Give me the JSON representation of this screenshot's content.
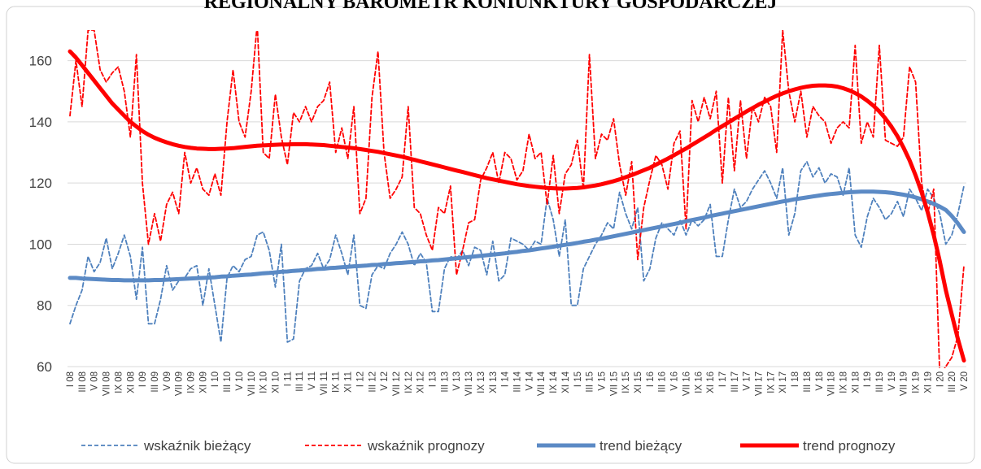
{
  "chart_data": {
    "type": "line",
    "title": "REGIONALNY BAROMETR KONIUNKTURY GOSPODARCZEJ",
    "categories": [
      "I 08",
      null,
      "III 08",
      null,
      "V 08",
      null,
      "VII 08",
      null,
      "IX 08",
      null,
      "XI 08",
      null,
      "I 09",
      null,
      "III 09",
      null,
      "V 09",
      null,
      "VII 09",
      null,
      "IX 09",
      null,
      "XI 09",
      null,
      "I 10",
      null,
      "III 10",
      null,
      "V 10",
      null,
      "VII 10",
      null,
      "IX 10",
      null,
      "XI 10",
      null,
      "I 11",
      null,
      "III 11",
      null,
      "V 11",
      null,
      "VII 11",
      null,
      "IX 11",
      null,
      "XI 11",
      null,
      "I 12",
      null,
      "III 12",
      null,
      "V 12",
      null,
      "VII 12",
      null,
      "IX 12",
      null,
      "XI 12",
      null,
      "I 13",
      null,
      "III 13",
      null,
      "V 13",
      null,
      "VII 13",
      null,
      "IX 13",
      null,
      "XI 13",
      null,
      "I 14",
      null,
      "III 14",
      null,
      "V 14",
      null,
      "VII 14",
      null,
      "IX 14",
      null,
      "XI 14",
      null,
      "I 15",
      null,
      "III 15",
      null,
      "V 15",
      null,
      "VII 15",
      null,
      "IX 15",
      null,
      "XI 15",
      null,
      "I 16",
      null,
      "III 16",
      null,
      "V 16",
      null,
      "VII 16",
      null,
      "IX 16",
      null,
      "XI 16",
      null,
      "I 17",
      null,
      "III 17",
      null,
      "V 17",
      null,
      "VII 17",
      null,
      "IX 17",
      null,
      "XI 17",
      null,
      "I 18",
      null,
      "III 18",
      null,
      "V 18",
      null,
      "VII 18",
      null,
      "IX 18",
      null,
      "XI 18",
      null,
      "I 19",
      null,
      "III 19",
      null,
      "V 19",
      null,
      "VII 19",
      null,
      "IX 19",
      null,
      "XI 19",
      null,
      "I 20",
      null,
      "III 20",
      null,
      "V 20"
    ],
    "series": [
      {
        "name": "wskaźnik bieżący",
        "color": "#4f81bd",
        "dashed": true,
        "values": [
          74,
          80,
          85,
          96,
          91,
          94,
          102,
          92,
          97,
          103,
          96,
          82,
          99,
          74,
          74,
          82,
          93,
          85,
          88,
          89,
          92,
          93,
          80,
          92,
          80,
          68,
          89,
          93,
          91,
          95,
          96,
          103,
          104,
          98,
          86,
          100,
          68,
          69,
          88,
          92,
          93,
          97,
          92,
          95,
          103,
          97,
          90,
          103,
          80,
          79,
          90,
          93,
          92,
          97,
          100,
          104,
          100,
          93,
          97,
          94,
          78,
          78,
          92,
          96,
          95,
          98,
          93,
          99,
          98,
          90,
          101,
          88,
          90,
          102,
          101,
          100,
          98,
          101,
          100,
          115,
          108,
          96,
          108,
          80,
          80,
          92,
          96,
          100,
          103,
          107,
          105,
          117,
          110,
          105,
          112,
          88,
          92,
          102,
          107,
          105,
          103,
          108,
          103,
          108,
          106,
          108,
          113,
          96,
          96,
          108,
          118,
          112,
          114,
          118,
          121,
          124,
          120,
          115,
          125,
          103,
          110,
          124,
          127,
          122,
          125,
          120,
          123,
          122,
          116,
          125,
          103,
          99,
          109,
          115,
          112,
          108,
          110,
          114,
          109,
          118,
          115,
          111,
          118,
          115,
          110,
          100,
          103,
          110,
          119
        ]
      },
      {
        "name": "wskaźnik prognozy",
        "color": "#ff0000",
        "dashed": true,
        "values": [
          142,
          160,
          145,
          170,
          170,
          157,
          153,
          156,
          158,
          150,
          135,
          162,
          120,
          100,
          110,
          101,
          113,
          117,
          110,
          130,
          120,
          125,
          118,
          116,
          123,
          116,
          140,
          157,
          140,
          135,
          150,
          172,
          130,
          128,
          149,
          135,
          126,
          143,
          140,
          145,
          140,
          145,
          147,
          153,
          130,
          138,
          128,
          145,
          110,
          115,
          148,
          163,
          130,
          115,
          118,
          122,
          145,
          112,
          110,
          103,
          98,
          112,
          110,
          119,
          90,
          98,
          107,
          108,
          121,
          125,
          130,
          120,
          130,
          128,
          121,
          124,
          136,
          128,
          130,
          113,
          129,
          110,
          123,
          126,
          134,
          118,
          162,
          128,
          136,
          134,
          141,
          126,
          116,
          127,
          95,
          112,
          121,
          129,
          126,
          118,
          133,
          137,
          105,
          147,
          140,
          148,
          141,
          150,
          120,
          148,
          124,
          147,
          128,
          145,
          140,
          148,
          145,
          130,
          170,
          150,
          140,
          150,
          135,
          145,
          142,
          140,
          133,
          138,
          140,
          138,
          165,
          133,
          140,
          135,
          165,
          134,
          133,
          132,
          135,
          158,
          153,
          120,
          110,
          118,
          57,
          60,
          63,
          70,
          93
        ]
      },
      {
        "name": "trend bieżący",
        "color": "#5b8ac5",
        "dashed": false,
        "values": [
          89,
          89,
          88.8,
          88.7,
          88.6,
          88.5,
          88.4,
          88.3,
          88.3,
          88.2,
          88.2,
          88.2,
          88.2,
          88.2,
          88.3,
          88.3,
          88.4,
          88.5,
          88.6,
          88.7,
          88.8,
          88.9,
          89,
          89.1,
          89.2,
          89.4,
          89.5,
          89.7,
          89.8,
          90,
          90.1,
          90.3,
          90.5,
          90.6,
          90.8,
          91,
          91.1,
          91.3,
          91.4,
          91.6,
          91.7,
          91.9,
          92,
          92.2,
          92.3,
          92.5,
          92.6,
          92.8,
          92.9,
          93,
          93.2,
          93.3,
          93.5,
          93.6,
          93.8,
          93.9,
          94.1,
          94.2,
          94.4,
          94.5,
          94.7,
          94.8,
          95,
          95.2,
          95.4,
          95.6,
          95.8,
          96,
          96.2,
          96.4,
          96.6,
          96.8,
          97,
          97.3,
          97.5,
          97.8,
          98,
          98.3,
          98.6,
          98.9,
          99.2,
          99.5,
          99.8,
          100.1,
          100.4,
          100.8,
          101.1,
          101.5,
          101.8,
          102.2,
          102.6,
          103,
          103.4,
          103.8,
          104.2,
          104.6,
          105,
          105.4,
          105.8,
          106.2,
          106.6,
          107,
          107.5,
          107.9,
          108.3,
          108.7,
          109.2,
          109.6,
          110,
          110.4,
          110.8,
          111.2,
          111.6,
          112,
          112.4,
          112.8,
          113.2,
          113.6,
          114,
          114.3,
          114.7,
          115,
          115.3,
          115.6,
          115.9,
          116.2,
          116.4,
          116.6,
          116.8,
          117,
          117.1,
          117.2,
          117.2,
          117.2,
          117.1,
          117,
          116.8,
          116.5,
          116.2,
          115.8,
          115.3,
          114.7,
          114,
          113.2,
          112.3,
          111.2,
          109.2,
          106.8,
          104
        ]
      },
      {
        "name": "trend prognozy",
        "color": "#ff0000",
        "dashed": false,
        "values": [
          163,
          161,
          158.5,
          156,
          153.5,
          151,
          148.5,
          146,
          144,
          142,
          140,
          138.5,
          137,
          135.8,
          134.8,
          134,
          133.3,
          132.7,
          132.2,
          131.8,
          131.5,
          131.3,
          131.2,
          131.1,
          131.1,
          131.2,
          131.3,
          131.4,
          131.6,
          131.8,
          132,
          132.2,
          132.3,
          132.4,
          132.5,
          132.6,
          132.6,
          132.7,
          132.7,
          132.7,
          132.6,
          132.5,
          132.4,
          132.2,
          132,
          131.8,
          131.6,
          131.4,
          131.1,
          130.8,
          130.5,
          130.2,
          129.8,
          129.4,
          129,
          128.6,
          128.1,
          127.6,
          127.1,
          126.6,
          126.1,
          125.6,
          125.1,
          124.6,
          124.1,
          123.6,
          123.1,
          122.6,
          122.1,
          121.6,
          121.2,
          120.8,
          120.4,
          120,
          119.6,
          119.3,
          119,
          118.8,
          118.6,
          118.4,
          118.3,
          118.2,
          118.2,
          118.3,
          118.4,
          118.6,
          118.9,
          119.2,
          119.6,
          120.1,
          120.6,
          121.2,
          121.9,
          122.6,
          123.4,
          124.2,
          125,
          126,
          127,
          128,
          129.1,
          130.2,
          131.3,
          132.5,
          133.7,
          134.9,
          136.1,
          137.4,
          138.6,
          139.8,
          141,
          142.2,
          143.4,
          144.5,
          145.6,
          146.6,
          147.6,
          148.5,
          149.3,
          150,
          150.6,
          151.1,
          151.5,
          151.8,
          151.9,
          151.9,
          151.8,
          151.5,
          151,
          150.3,
          149.4,
          148.3,
          146.9,
          145.3,
          143.4,
          141.1,
          138.4,
          135.3,
          131.6,
          127.4,
          122.5,
          117,
          110.5,
          103,
          94.5,
          85,
          77,
          69,
          62
        ]
      }
    ],
    "ylim": [
      60,
      170
    ],
    "yticks": [
      60,
      80,
      100,
      120,
      140,
      160
    ],
    "grid": true,
    "legend": "bottom"
  }
}
